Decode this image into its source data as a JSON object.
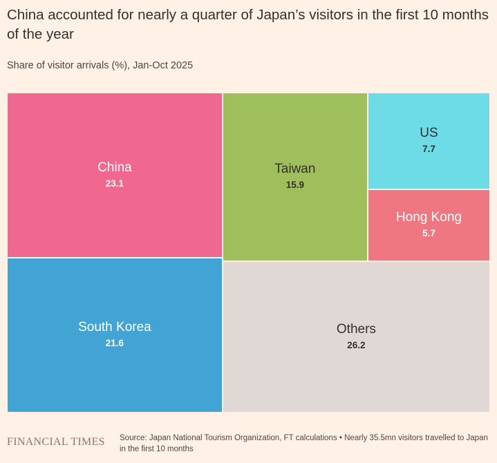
{
  "title": "China accounted for nearly a quarter of Japan’s visitors in the first 10 months of the year",
  "subtitle": "Share of visitor arrivals (%), Jan-Oct 2025",
  "chart_data": {
    "type": "treemap",
    "unit": "%",
    "items": [
      {
        "name": "China",
        "value": 23.1,
        "value_label": "23.1",
        "color": "#f0678f"
      },
      {
        "name": "South Korea",
        "value": 21.6,
        "value_label": "21.6",
        "color": "#41a4d4"
      },
      {
        "name": "Taiwan",
        "value": 15.9,
        "value_label": "15.9",
        "color": "#9ebf5b"
      },
      {
        "name": "US",
        "value": 7.7,
        "value_label": "7.7",
        "color": "#6ddce6"
      },
      {
        "name": "Hong Kong",
        "value": 5.7,
        "value_label": "5.7",
        "color": "#ef7781"
      },
      {
        "name": "Others",
        "value": 26.2,
        "value_label": "26.2",
        "color": "#e0d8d5"
      }
    ]
  },
  "footer": {
    "logo": "FINANCIAL TIMES",
    "source": "Source: Japan National Tourism Organization, FT calculations • Nearly 35.5mn visitors travelled to Japan in the first 10 months"
  }
}
